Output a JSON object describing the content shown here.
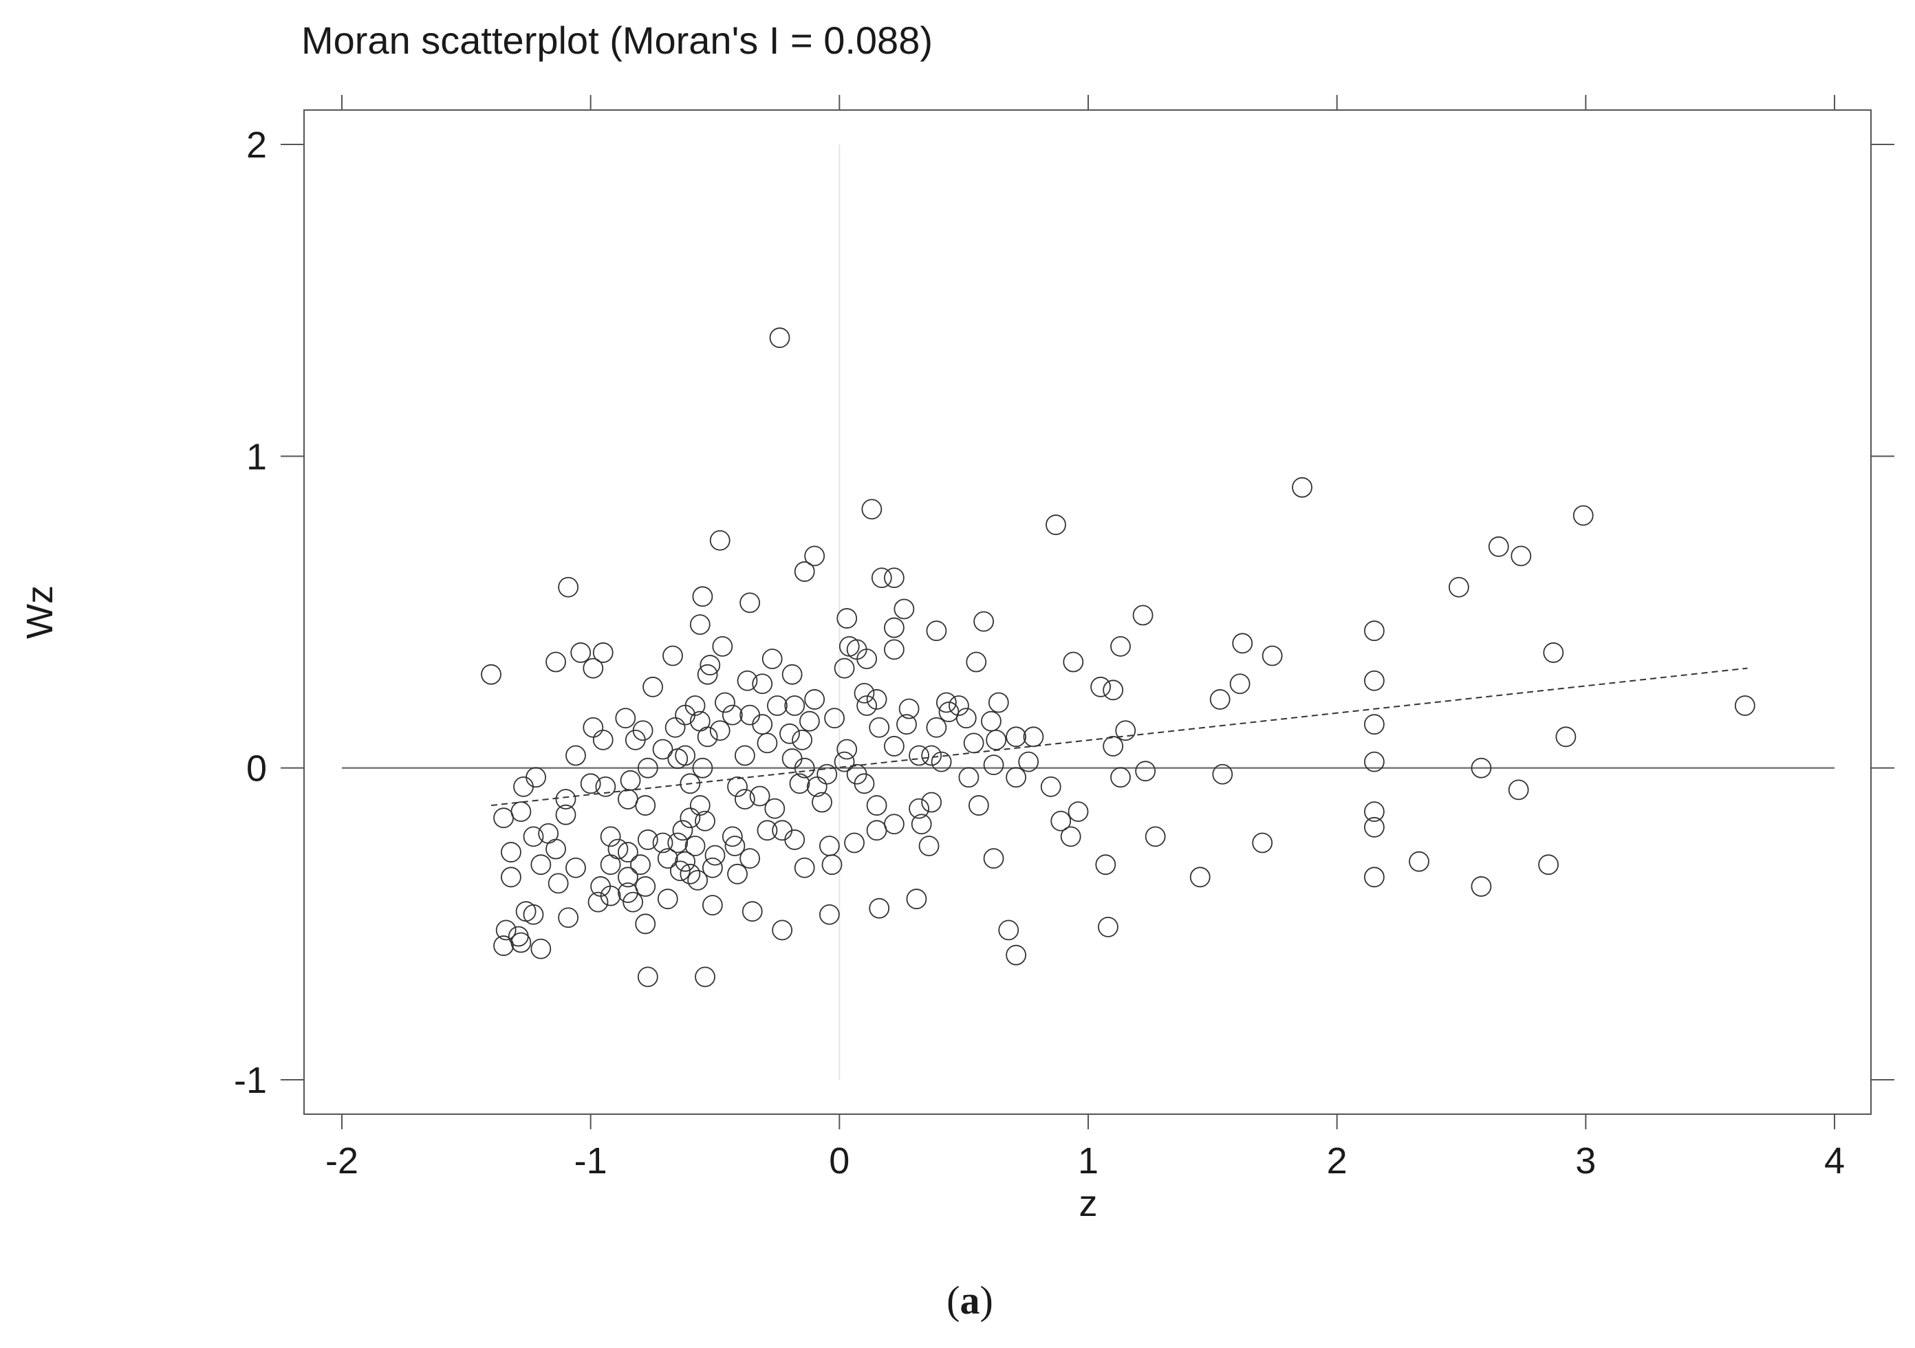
{
  "chart_data": {
    "type": "scatter",
    "title": "Moran scatterplot (Moran's I = 0.088)",
    "xlabel": "z",
    "ylabel": "Wz",
    "caption_letter": "a",
    "xlim": [
      -2,
      4
    ],
    "ylim": [
      -1,
      2
    ],
    "x_ticks": [
      -2,
      -1,
      0,
      1,
      2,
      3,
      4
    ],
    "y_ticks": [
      -1,
      0,
      1,
      2
    ],
    "x_tick_labels": [
      "-2",
      "-1",
      "0",
      "1",
      "2",
      "3",
      "4"
    ],
    "y_tick_labels": [
      "-1",
      "0",
      "1",
      "2"
    ],
    "grid": false,
    "reference_lines": {
      "x": 0,
      "y": 0
    },
    "fit_line": {
      "x": [
        -1.4,
        3.65
      ],
      "y": [
        -0.12,
        0.32
      ],
      "style": "dashed"
    },
    "points": [
      [
        -0.24,
        1.38
      ],
      [
        1.86,
        0.9
      ],
      [
        2.99,
        0.81
      ],
      [
        0.87,
        0.78
      ],
      [
        0.13,
        0.83
      ],
      [
        -0.48,
        0.73
      ],
      [
        2.65,
        0.71
      ],
      [
        2.74,
        0.68
      ],
      [
        -0.1,
        0.68
      ],
      [
        -0.14,
        0.63
      ],
      [
        0.17,
        0.61
      ],
      [
        0.22,
        0.61
      ],
      [
        2.49,
        0.58
      ],
      [
        -1.09,
        0.58
      ],
      [
        -0.55,
        0.55
      ],
      [
        -0.36,
        0.53
      ],
      [
        0.26,
        0.51
      ],
      [
        1.22,
        0.49
      ],
      [
        0.03,
        0.48
      ],
      [
        0.58,
        0.47
      ],
      [
        -0.56,
        0.46
      ],
      [
        2.15,
        0.44
      ],
      [
        0.39,
        0.44
      ],
      [
        0.22,
        0.45
      ],
      [
        0.04,
        0.39
      ],
      [
        0.07,
        0.38
      ],
      [
        -0.47,
        0.39
      ],
      [
        -0.95,
        0.37
      ],
      [
        -1.04,
        0.37
      ],
      [
        1.62,
        0.4
      ],
      [
        1.74,
        0.36
      ],
      [
        2.87,
        0.37
      ],
      [
        1.13,
        0.39
      ],
      [
        0.22,
        0.38
      ],
      [
        0.11,
        0.35
      ],
      [
        -1.14,
        0.34
      ],
      [
        -0.99,
        0.32
      ],
      [
        -0.67,
        0.36
      ],
      [
        -0.27,
        0.35
      ],
      [
        -0.52,
        0.33
      ],
      [
        0.55,
        0.34
      ],
      [
        0.94,
        0.34
      ],
      [
        0.02,
        0.32
      ],
      [
        -1.4,
        0.3
      ],
      [
        -0.53,
        0.3
      ],
      [
        -0.37,
        0.28
      ],
      [
        -0.31,
        0.27
      ],
      [
        -0.19,
        0.3
      ],
      [
        2.15,
        0.28
      ],
      [
        1.61,
        0.27
      ],
      [
        -0.75,
        0.26
      ],
      [
        1.05,
        0.26
      ],
      [
        1.1,
        0.25
      ],
      [
        0.1,
        0.24
      ],
      [
        0.15,
        0.22
      ],
      [
        -0.1,
        0.22
      ],
      [
        1.53,
        0.22
      ],
      [
        0.43,
        0.21
      ],
      [
        0.64,
        0.21
      ],
      [
        0.48,
        0.2
      ],
      [
        0.11,
        0.2
      ],
      [
        -0.18,
        0.2
      ],
      [
        -0.58,
        0.2
      ],
      [
        -0.46,
        0.21
      ],
      [
        -0.25,
        0.2
      ],
      [
        0.28,
        0.19
      ],
      [
        0.44,
        0.18
      ],
      [
        3.64,
        0.2
      ],
      [
        -0.62,
        0.17
      ],
      [
        -0.43,
        0.17
      ],
      [
        -0.36,
        0.17
      ],
      [
        -0.02,
        0.16
      ],
      [
        0.51,
        0.16
      ],
      [
        -0.86,
        0.16
      ],
      [
        -0.12,
        0.15
      ],
      [
        -0.56,
        0.15
      ],
      [
        0.61,
        0.15
      ],
      [
        0.27,
        0.14
      ],
      [
        0.39,
        0.13
      ],
      [
        0.16,
        0.13
      ],
      [
        -0.31,
        0.14
      ],
      [
        -0.66,
        0.13
      ],
      [
        -0.99,
        0.13
      ],
      [
        -0.79,
        0.12
      ],
      [
        2.15,
        0.14
      ],
      [
        1.15,
        0.12
      ],
      [
        -0.48,
        0.12
      ],
      [
        -0.2,
        0.11
      ],
      [
        -0.53,
        0.1
      ],
      [
        0.63,
        0.09
      ],
      [
        0.78,
        0.1
      ],
      [
        0.71,
        0.1
      ],
      [
        2.92,
        0.1
      ],
      [
        -0.95,
        0.09
      ],
      [
        -0.82,
        0.09
      ],
      [
        -0.15,
        0.09
      ],
      [
        0.54,
        0.08
      ],
      [
        1.1,
        0.07
      ],
      [
        -0.29,
        0.08
      ],
      [
        0.22,
        0.07
      ],
      [
        0.03,
        0.06
      ],
      [
        -0.71,
        0.06
      ],
      [
        -0.62,
        0.04
      ],
      [
        -0.38,
        0.04
      ],
      [
        0.32,
        0.04
      ],
      [
        0.37,
        0.04
      ],
      [
        -1.06,
        0.04
      ],
      [
        -0.19,
        0.03
      ],
      [
        -0.65,
        0.03
      ],
      [
        0.41,
        0.02
      ],
      [
        0.62,
        0.01
      ],
      [
        0.76,
        0.02
      ],
      [
        0.02,
        0.02
      ],
      [
        2.15,
        0.02
      ],
      [
        2.58,
        0.0
      ],
      [
        -0.77,
        0.0
      ],
      [
        -0.14,
        0.0
      ],
      [
        -0.55,
        0.0
      ],
      [
        1.23,
        -0.01
      ],
      [
        1.54,
        -0.02
      ],
      [
        -0.05,
        -0.02
      ],
      [
        0.07,
        -0.02
      ],
      [
        0.52,
        -0.03
      ],
      [
        0.71,
        -0.03
      ],
      [
        1.13,
        -0.03
      ],
      [
        -1.22,
        -0.03
      ],
      [
        -0.84,
        -0.04
      ],
      [
        -1.0,
        -0.05
      ],
      [
        -0.6,
        -0.05
      ],
      [
        -0.16,
        -0.05
      ],
      [
        0.1,
        -0.05
      ],
      [
        -0.94,
        -0.06
      ],
      [
        -1.27,
        -0.06
      ],
      [
        -0.41,
        -0.06
      ],
      [
        -0.09,
        -0.06
      ],
      [
        0.85,
        -0.06
      ],
      [
        2.73,
        -0.07
      ],
      [
        -0.32,
        -0.09
      ],
      [
        -0.85,
        -0.1
      ],
      [
        -0.38,
        -0.1
      ],
      [
        -0.07,
        -0.11
      ],
      [
        0.37,
        -0.11
      ],
      [
        -1.1,
        -0.1
      ],
      [
        0.15,
        -0.12
      ],
      [
        -0.78,
        -0.12
      ],
      [
        -0.56,
        -0.12
      ],
      [
        0.56,
        -0.12
      ],
      [
        0.32,
        -0.13
      ],
      [
        -0.26,
        -0.13
      ],
      [
        -1.28,
        -0.14
      ],
      [
        0.96,
        -0.14
      ],
      [
        2.15,
        -0.14
      ],
      [
        -1.1,
        -0.15
      ],
      [
        -1.35,
        -0.16
      ],
      [
        -0.6,
        -0.16
      ],
      [
        -0.54,
        -0.17
      ],
      [
        0.89,
        -0.17
      ],
      [
        0.33,
        -0.18
      ],
      [
        -0.23,
        -0.2
      ],
      [
        0.22,
        -0.18
      ],
      [
        0.15,
        -0.2
      ],
      [
        2.15,
        -0.19
      ],
      [
        -0.63,
        -0.2
      ],
      [
        -0.29,
        -0.2
      ],
      [
        -0.43,
        -0.22
      ],
      [
        -1.17,
        -0.21
      ],
      [
        -1.23,
        -0.22
      ],
      [
        -0.92,
        -0.22
      ],
      [
        0.93,
        -0.22
      ],
      [
        1.27,
        -0.22
      ],
      [
        -0.77,
        -0.23
      ],
      [
        -0.71,
        -0.24
      ],
      [
        -0.18,
        -0.23
      ],
      [
        0.06,
        -0.24
      ],
      [
        -0.04,
        -0.25
      ],
      [
        -0.65,
        -0.24
      ],
      [
        -0.58,
        -0.25
      ],
      [
        -0.42,
        -0.25
      ],
      [
        -1.14,
        -0.26
      ],
      [
        -0.89,
        -0.26
      ],
      [
        -0.85,
        -0.27
      ],
      [
        1.7,
        -0.24
      ],
      [
        0.36,
        -0.25
      ],
      [
        -1.32,
        -0.27
      ],
      [
        -0.5,
        -0.28
      ],
      [
        -0.36,
        -0.29
      ],
      [
        -0.69,
        -0.29
      ],
      [
        -0.62,
        -0.3
      ],
      [
        -0.8,
        -0.31
      ],
      [
        -0.92,
        -0.31
      ],
      [
        -1.2,
        -0.31
      ],
      [
        -1.06,
        -0.32
      ],
      [
        -0.51,
        -0.32
      ],
      [
        -0.03,
        -0.31
      ],
      [
        -0.14,
        -0.32
      ],
      [
        0.62,
        -0.29
      ],
      [
        1.07,
        -0.31
      ],
      [
        2.33,
        -0.3
      ],
      [
        2.85,
        -0.31
      ],
      [
        -0.64,
        -0.33
      ],
      [
        -0.6,
        -0.34
      ],
      [
        -0.41,
        -0.34
      ],
      [
        -0.85,
        -0.35
      ],
      [
        -0.57,
        -0.36
      ],
      [
        -1.32,
        -0.35
      ],
      [
        -1.13,
        -0.37
      ],
      [
        -0.96,
        -0.38
      ],
      [
        -0.78,
        -0.38
      ],
      [
        -0.85,
        -0.4
      ],
      [
        -0.92,
        -0.41
      ],
      [
        1.45,
        -0.35
      ],
      [
        2.15,
        -0.35
      ],
      [
        2.58,
        -0.38
      ],
      [
        -0.97,
        -0.43
      ],
      [
        -0.83,
        -0.43
      ],
      [
        -0.69,
        -0.42
      ],
      [
        0.31,
        -0.42
      ],
      [
        0.16,
        -0.45
      ],
      [
        -0.51,
        -0.44
      ],
      [
        -0.35,
        -0.46
      ],
      [
        -1.26,
        -0.46
      ],
      [
        -1.23,
        -0.47
      ],
      [
        -1.09,
        -0.48
      ],
      [
        -0.04,
        -0.47
      ],
      [
        -0.78,
        -0.5
      ],
      [
        -1.34,
        -0.52
      ],
      [
        1.08,
        -0.51
      ],
      [
        0.68,
        -0.52
      ],
      [
        -0.23,
        -0.52
      ],
      [
        -1.29,
        -0.54
      ],
      [
        -1.28,
        -0.56
      ],
      [
        -1.35,
        -0.57
      ],
      [
        -1.2,
        -0.58
      ],
      [
        0.71,
        -0.6
      ],
      [
        -0.77,
        -0.67
      ],
      [
        -0.54,
        -0.67
      ]
    ]
  }
}
